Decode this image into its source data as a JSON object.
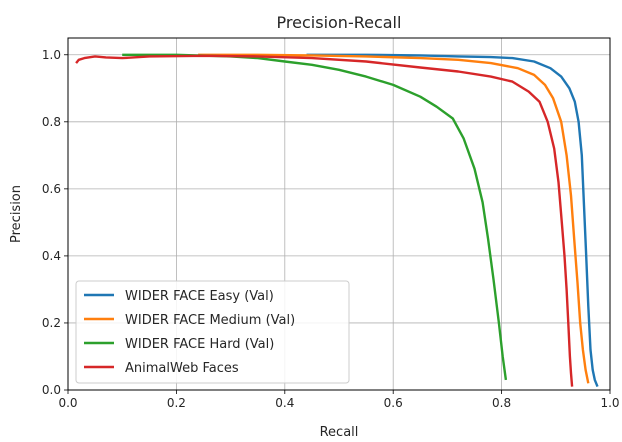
{
  "chart_data": {
    "type": "line",
    "title": "Precision-Recall",
    "xlabel": "Recall",
    "ylabel": "Precision",
    "xlim": [
      0.0,
      1.0
    ],
    "ylim": [
      0.0,
      1.05
    ],
    "xticks": [
      0.0,
      0.2,
      0.4,
      0.6,
      0.8,
      1.0
    ],
    "xtick_labels": [
      "0.0",
      "0.2",
      "0.4",
      "0.6",
      "0.8",
      "1.0"
    ],
    "yticks": [
      0.0,
      0.2,
      0.4,
      0.6,
      0.8,
      1.0
    ],
    "ytick_labels": [
      "0.0",
      "0.2",
      "0.4",
      "0.6",
      "0.8",
      "1.0"
    ],
    "grid": true,
    "legend_position": "lower-left",
    "series": [
      {
        "name": "WIDER FACE Easy (Val)",
        "color": "#1f77b4",
        "x": [
          0.44,
          0.55,
          0.65,
          0.72,
          0.78,
          0.82,
          0.86,
          0.89,
          0.91,
          0.925,
          0.935,
          0.942,
          0.948,
          0.952,
          0.956,
          0.96,
          0.964,
          0.968,
          0.972,
          0.977
        ],
        "y": [
          1.0,
          1.0,
          0.998,
          0.995,
          0.993,
          0.99,
          0.98,
          0.96,
          0.935,
          0.9,
          0.86,
          0.8,
          0.7,
          0.55,
          0.4,
          0.25,
          0.12,
          0.06,
          0.03,
          0.01
        ]
      },
      {
        "name": "WIDER FACE Medium (Val)",
        "color": "#ff7f0e",
        "x": [
          0.24,
          0.35,
          0.45,
          0.55,
          0.65,
          0.72,
          0.78,
          0.83,
          0.86,
          0.88,
          0.895,
          0.91,
          0.92,
          0.928,
          0.934,
          0.94,
          0.945,
          0.95,
          0.955,
          0.96
        ],
        "y": [
          1.0,
          1.0,
          0.998,
          0.995,
          0.99,
          0.985,
          0.975,
          0.96,
          0.94,
          0.91,
          0.87,
          0.8,
          0.7,
          0.58,
          0.45,
          0.32,
          0.2,
          0.12,
          0.06,
          0.02
        ]
      },
      {
        "name": "WIDER FACE Hard (Val)",
        "color": "#2ca02c",
        "x": [
          0.1,
          0.2,
          0.3,
          0.35,
          0.4,
          0.45,
          0.5,
          0.55,
          0.6,
          0.65,
          0.68,
          0.71,
          0.73,
          0.75,
          0.765,
          0.775,
          0.785,
          0.795,
          0.802,
          0.808
        ],
        "y": [
          1.0,
          1.0,
          0.995,
          0.99,
          0.98,
          0.97,
          0.955,
          0.935,
          0.91,
          0.875,
          0.845,
          0.81,
          0.75,
          0.66,
          0.56,
          0.45,
          0.33,
          0.2,
          0.1,
          0.03
        ]
      },
      {
        "name": "AnimalWeb Faces",
        "color": "#d62728",
        "x": [
          0.015,
          0.02,
          0.03,
          0.05,
          0.07,
          0.1,
          0.15,
          0.25,
          0.35,
          0.45,
          0.55,
          0.65,
          0.72,
          0.78,
          0.82,
          0.85,
          0.87,
          0.885,
          0.897,
          0.905,
          0.911,
          0.916,
          0.92,
          0.923,
          0.926,
          0.928,
          0.93
        ],
        "y": [
          0.975,
          0.985,
          0.99,
          0.995,
          0.992,
          0.99,
          0.995,
          0.997,
          0.995,
          0.99,
          0.98,
          0.962,
          0.95,
          0.935,
          0.92,
          0.89,
          0.86,
          0.8,
          0.72,
          0.62,
          0.5,
          0.4,
          0.3,
          0.2,
          0.1,
          0.05,
          0.01
        ]
      }
    ]
  }
}
